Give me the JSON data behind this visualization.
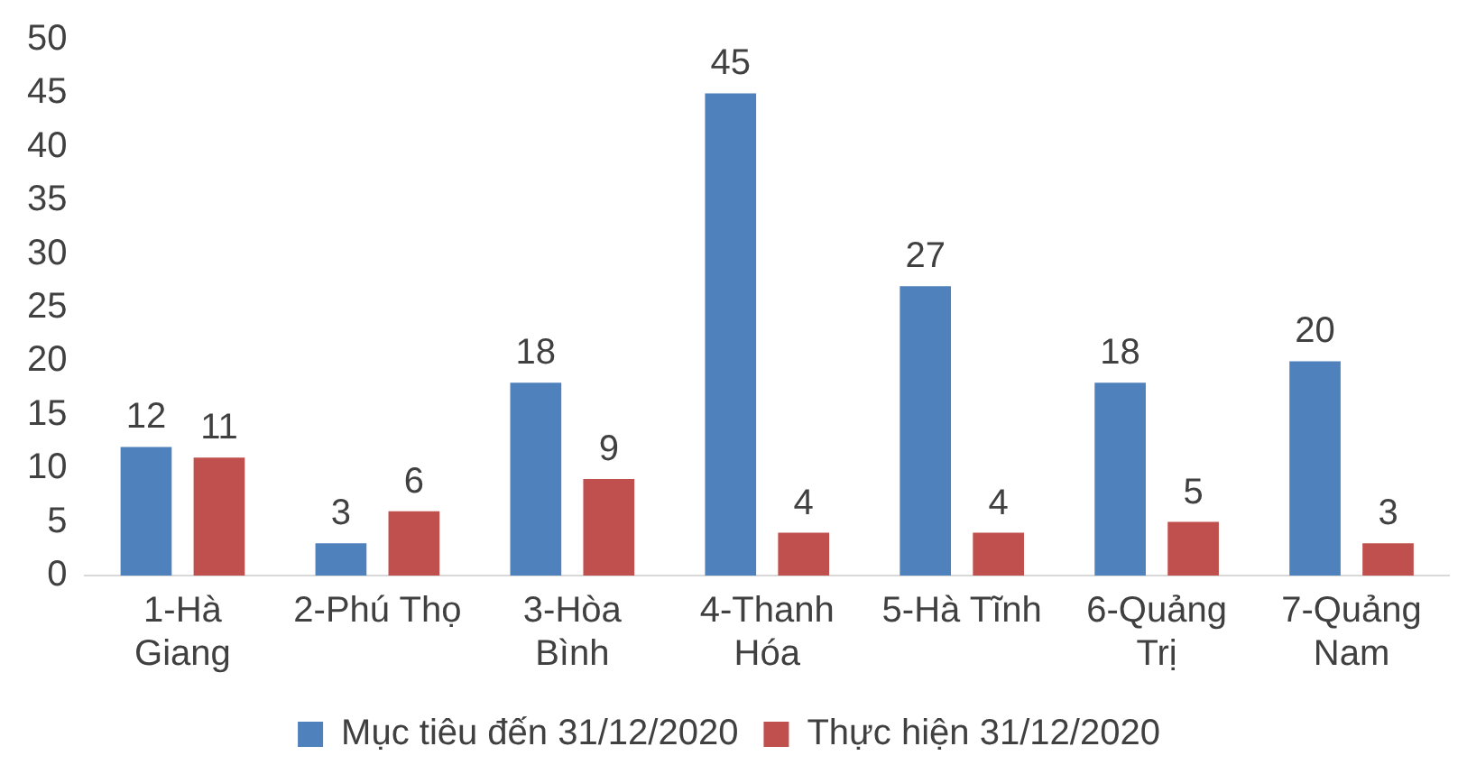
{
  "chart_data": {
    "type": "bar",
    "categories": [
      "1-Hà Giang",
      "2-Phú Thọ",
      "3-Hòa Bình",
      "4-Thanh Hóa",
      "5-Hà Tĩnh",
      "6-Quảng Trị",
      "7-Quảng Nam"
    ],
    "series": [
      {
        "name": "Mục tiêu đến 31/12/2020",
        "color": "#4f81bd",
        "values": [
          12,
          3,
          18,
          45,
          27,
          18,
          20
        ]
      },
      {
        "name": "Thực hiện 31/12/2020",
        "color": "#c0504d",
        "values": [
          11,
          6,
          9,
          4,
          4,
          5,
          3
        ]
      }
    ],
    "ylim": [
      0,
      50
    ],
    "yticks": [
      0,
      5,
      10,
      15,
      20,
      25,
      30,
      35,
      40,
      45,
      50
    ],
    "grid": false,
    "legend": "bottom",
    "data_labels": true
  }
}
